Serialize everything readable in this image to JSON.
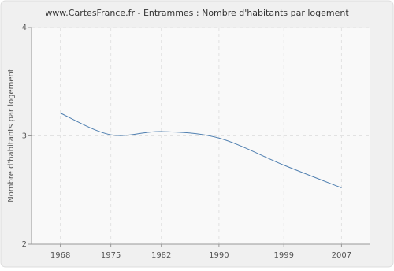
{
  "chart_data": {
    "type": "line",
    "title": "www.CartesFrance.fr - Entrammes : Nombre d'habitants par logement",
    "y_label": "Nombre d'habitants par logement",
    "x": [
      1968,
      1975,
      1982,
      1990,
      1999,
      2007
    ],
    "series": [
      {
        "name": "Entrammes",
        "color": "#4f7fb0",
        "values": [
          3.21,
          3.01,
          3.04,
          2.98,
          2.73,
          2.52
        ]
      }
    ],
    "xlim": [
      1964,
      2011
    ],
    "xticks": [
      1968,
      1975,
      1982,
      1990,
      1999,
      2007
    ],
    "ylim": [
      2,
      4
    ],
    "yticks": [
      2,
      3,
      4
    ],
    "grid": true
  }
}
